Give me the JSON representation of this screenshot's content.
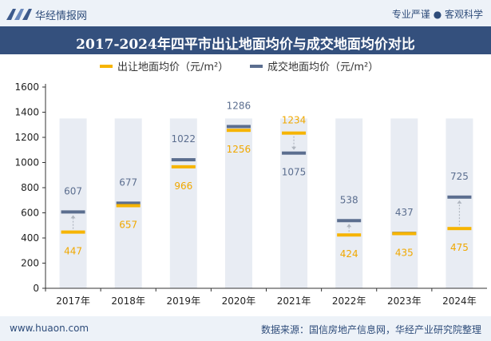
{
  "header": {
    "brand": "华经情报网",
    "tagline": "专业严谨 ● 客观科学"
  },
  "chart_data": {
    "type": "line",
    "title": "2017-2024年四平市出让地面均价与成交地面均价对比",
    "categories": [
      "2017年",
      "2018年",
      "2019年",
      "2020年",
      "2021年",
      "2022年",
      "2023年",
      "2024年"
    ],
    "series": [
      {
        "name": "出让地面均价（元/m²）",
        "color": "#f6b400",
        "values": [
          447,
          657,
          966,
          1256,
          1234,
          424,
          435,
          475
        ]
      },
      {
        "name": "成交地面均价（元/m²）",
        "color": "#5b6e8f",
        "values": [
          607,
          677,
          1022,
          1286,
          1075,
          538,
          437,
          725
        ]
      }
    ],
    "ylim": [
      0,
      1600
    ],
    "yticks": [
      0,
      200,
      400,
      600,
      800,
      1000,
      1200,
      1400,
      1600
    ],
    "legend_position": "top-center",
    "background_column_color": "#e8ecf3",
    "grid": false
  },
  "footer": {
    "website": "www.huaon.com",
    "source": "数据来源：国信房地产信息网，华经产业研究院整理"
  }
}
